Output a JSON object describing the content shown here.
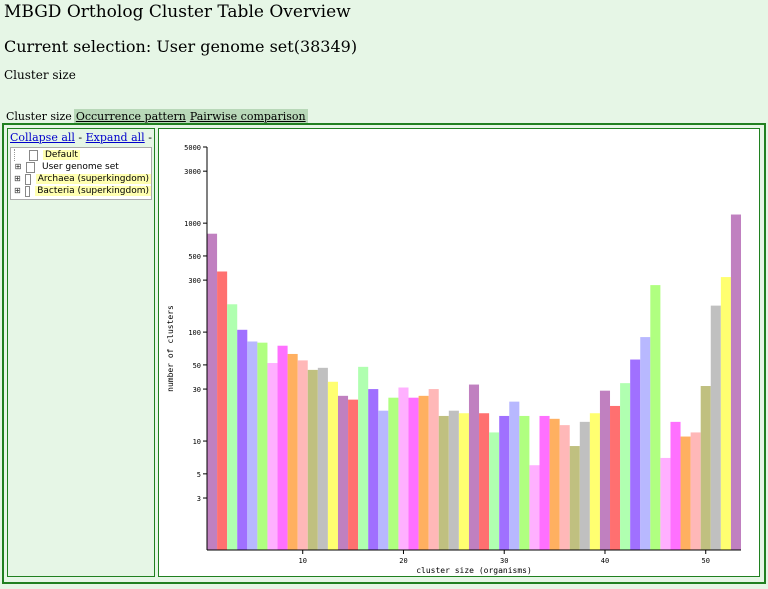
{
  "page": {
    "title": "MBGD Ortholog Cluster Table Overview",
    "selection": "Current selection: User genome set(38349)",
    "section": "Cluster size"
  },
  "tabs": [
    {
      "label": "Cluster size",
      "active": true
    },
    {
      "label": "Occurrence pattern",
      "active": false
    },
    {
      "label": "Pairwise comparison",
      "active": false
    }
  ],
  "tree": {
    "collapse_label": "Collapse all",
    "expand_label": "Expand all",
    "separator": "-",
    "nodes": [
      {
        "label": "Default",
        "highlighted": true,
        "expandable": false
      },
      {
        "label": "User genome set",
        "highlighted": false,
        "expandable": true
      },
      {
        "label": "Archaea (superkingdom)",
        "highlighted": true,
        "expandable": true
      },
      {
        "label": "Bacteria (superkingdom)",
        "highlighted": true,
        "expandable": true
      }
    ]
  },
  "chart_data": {
    "type": "bar",
    "title": "",
    "xlabel": "cluster size (organisms)",
    "ylabel": "number of clusters",
    "yscale": "log",
    "ylim": [
      1,
      5000
    ],
    "yticks": [
      3,
      5,
      10,
      30,
      50,
      100,
      300,
      500,
      1000,
      3000,
      5000
    ],
    "xticks": [
      10,
      20,
      30,
      40,
      50
    ],
    "grid": false,
    "categories": [
      1,
      2,
      3,
      4,
      5,
      6,
      7,
      8,
      9,
      10,
      11,
      12,
      13,
      14,
      15,
      16,
      17,
      18,
      19,
      20,
      21,
      22,
      23,
      24,
      25,
      26,
      27,
      28,
      29,
      30,
      31,
      32,
      33,
      34,
      35,
      36,
      37,
      38,
      39,
      40,
      41,
      42,
      43,
      44,
      45,
      46,
      47,
      48,
      49,
      50,
      51,
      52,
      53
    ],
    "values": [
      800,
      360,
      180,
      105,
      82,
      80,
      52,
      75,
      63,
      55,
      45,
      47,
      35,
      26,
      24,
      48,
      30,
      19,
      25,
      31,
      25,
      26,
      30,
      17,
      19,
      18,
      33,
      18,
      12,
      17,
      23,
      17,
      6,
      17,
      16,
      14,
      9,
      15,
      18,
      29,
      21,
      34,
      56,
      90,
      270,
      7,
      15,
      11,
      12,
      32,
      175,
      320,
      1200
    ],
    "colors": [
      "#c080c0",
      "#ff7070",
      "#b0ffb0",
      "#a070ff",
      "#b8b8ff",
      "#b0ff80",
      "#ffb0ff",
      "#ff70ff",
      "#ffb060",
      "#ffb8b8",
      "#c0c080",
      "#c0c0c0",
      "#ffff70",
      "#c080c0",
      "#ff7070",
      "#b0ffb0",
      "#a070ff",
      "#b8b8ff",
      "#b0ff80",
      "#ffb0ff",
      "#ff70ff",
      "#ffb060",
      "#ffb8b8",
      "#c0c080",
      "#c0c0c0",
      "#ffff70",
      "#c080c0",
      "#ff7070",
      "#b0ffb0",
      "#a070ff",
      "#b8b8ff",
      "#b0ff80",
      "#ffb0ff",
      "#ff70ff",
      "#ffb060",
      "#ffb8b8",
      "#c0c080",
      "#c0c0c0",
      "#ffff70",
      "#c080c0",
      "#ff7070",
      "#b0ffb0",
      "#a070ff",
      "#b8b8ff",
      "#b0ff80",
      "#ffb0ff",
      "#ff70ff",
      "#ffb060",
      "#ffb8b8",
      "#c0c080",
      "#c0c0c0",
      "#ffff70",
      "#c080c0"
    ]
  }
}
